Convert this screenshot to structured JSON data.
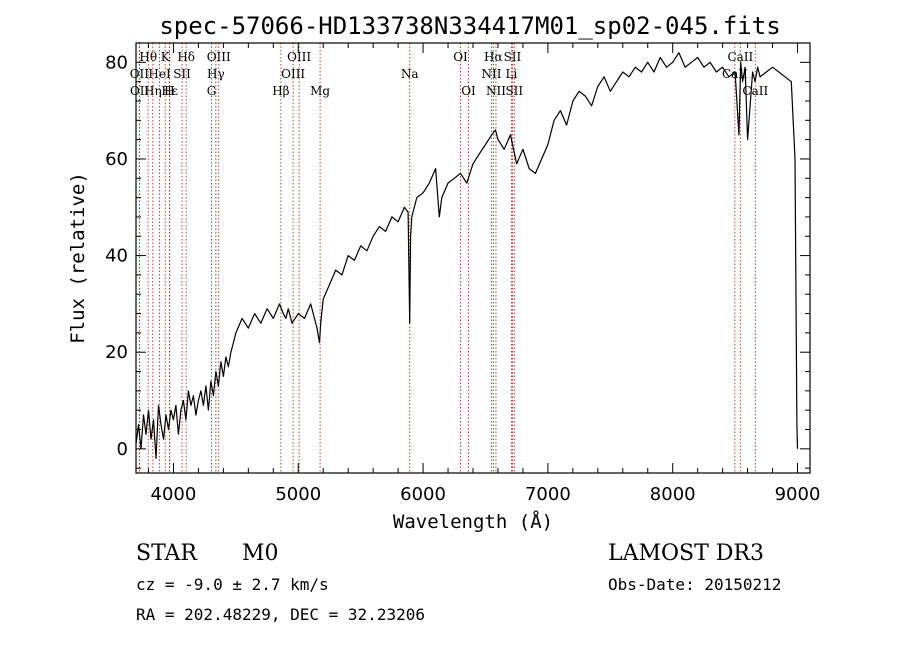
{
  "chart_data": {
    "type": "line",
    "title": "spec-57066-HD133738N334417M01_sp02-045.fits",
    "xlabel": "Wavelength (Å)",
    "ylabel": "Flux (relative)",
    "xlim": [
      3700,
      9100
    ],
    "ylim": [
      -5,
      84
    ],
    "xticks": [
      4000,
      5000,
      6000,
      7000,
      8000,
      9000
    ],
    "yticks": [
      0,
      20,
      40,
      60,
      80
    ],
    "series": [
      {
        "name": "spectrum",
        "x": [
          3700,
          3720,
          3740,
          3760,
          3780,
          3800,
          3820,
          3840,
          3860,
          3880,
          3900,
          3920,
          3940,
          3960,
          3980,
          4000,
          4020,
          4040,
          4060,
          4080,
          4100,
          4120,
          4140,
          4160,
          4180,
          4200,
          4220,
          4240,
          4260,
          4280,
          4300,
          4320,
          4340,
          4360,
          4380,
          4400,
          4420,
          4440,
          4460,
          4480,
          4500,
          4550,
          4600,
          4650,
          4700,
          4750,
          4800,
          4850,
          4880,
          4900,
          4920,
          4950,
          5000,
          5050,
          5100,
          5150,
          5170,
          5180,
          5200,
          5250,
          5300,
          5350,
          5400,
          5450,
          5500,
          5550,
          5600,
          5650,
          5700,
          5750,
          5800,
          5850,
          5880,
          5893,
          5900,
          5910,
          5950,
          6000,
          6050,
          6100,
          6130,
          6150,
          6200,
          6250,
          6300,
          6350,
          6400,
          6450,
          6500,
          6550,
          6580,
          6600,
          6650,
          6700,
          6750,
          6800,
          6850,
          6900,
          6950,
          7000,
          7050,
          7100,
          7150,
          7200,
          7250,
          7300,
          7350,
          7400,
          7450,
          7500,
          7550,
          7600,
          7650,
          7700,
          7750,
          7800,
          7850,
          7900,
          7950,
          8000,
          8050,
          8100,
          8150,
          8200,
          8250,
          8300,
          8350,
          8400,
          8450,
          8500,
          8530,
          8545,
          8560,
          8580,
          8600,
          8640,
          8660,
          8680,
          8700,
          8750,
          8800,
          8850,
          8900,
          8950,
          8980,
          8995,
          9000
        ],
        "values": [
          1,
          5,
          0,
          7,
          3,
          8,
          2,
          6,
          -2,
          9,
          5,
          2,
          7,
          4,
          8,
          6,
          9,
          3,
          8,
          10,
          6,
          12,
          9,
          11,
          7,
          10,
          12,
          9,
          13,
          8,
          14,
          11,
          16,
          13,
          18,
          15,
          19,
          17,
          20,
          22,
          24,
          27,
          25,
          28,
          26,
          29,
          27,
          30,
          28,
          27,
          29,
          26,
          28,
          27,
          30,
          25,
          22,
          26,
          31,
          34,
          37,
          36,
          40,
          39,
          42,
          41,
          44,
          46,
          45,
          48,
          47,
          50,
          49,
          26,
          44,
          48,
          52,
          53,
          55,
          58,
          48,
          52,
          55,
          56,
          57,
          55,
          59,
          61,
          63,
          65,
          66,
          64,
          62,
          65,
          59,
          62,
          58,
          57,
          60,
          63,
          68,
          70,
          67,
          72,
          74,
          73,
          71,
          75,
          77,
          74,
          76,
          78,
          77,
          79,
          78,
          80,
          78,
          81,
          79,
          80,
          82,
          79,
          80,
          81,
          79,
          80,
          78,
          79,
          77,
          78,
          65,
          80,
          76,
          79,
          64,
          78,
          76,
          79,
          77,
          78,
          79,
          78,
          77,
          76,
          60,
          5,
          0
        ]
      }
    ],
    "spectral_lines": [
      {
        "label": "Hθ",
        "wave": 3798,
        "row": 0
      },
      {
        "label": "OII",
        "wave": 3727,
        "row": 1
      },
      {
        "label": "OII",
        "wave": 3729,
        "row": 2
      },
      {
        "label": "Hε",
        "wave": 3970,
        "row": 2
      },
      {
        "label": "HeI",
        "wave": 3889,
        "row": 1
      },
      {
        "label": "Hη",
        "wave": 3835,
        "row": 2
      },
      {
        "label": "K",
        "wave": 3934,
        "row": 0
      },
      {
        "label": "H",
        "wave": 3968,
        "row": 2
      },
      {
        "label": "SII",
        "wave": 4069,
        "row": 1
      },
      {
        "label": "Hδ",
        "wave": 4102,
        "row": 0
      },
      {
        "label": "OIII",
        "wave": 4363,
        "row": 0
      },
      {
        "label": "Hγ",
        "wave": 4340,
        "row": 1
      },
      {
        "label": "G",
        "wave": 4305,
        "row": 2
      },
      {
        "label": "Hβ",
        "wave": 4861,
        "row": 2
      },
      {
        "label": "OIII",
        "wave": 5007,
        "row": 0
      },
      {
        "label": "OIII",
        "wave": 4959,
        "row": 1
      },
      {
        "label": "Mg",
        "wave": 5175,
        "row": 2
      },
      {
        "label": "Na",
        "wave": 5893,
        "row": 1
      },
      {
        "label": "OI",
        "wave": 6300,
        "row": 0
      },
      {
        "label": "OI",
        "wave": 6364,
        "row": 2
      },
      {
        "label": "Hα",
        "wave": 6563,
        "row": 0
      },
      {
        "label": "SII",
        "wave": 6716,
        "row": 0
      },
      {
        "label": "NII",
        "wave": 6548,
        "row": 1
      },
      {
        "label": "Li",
        "wave": 6708,
        "row": 1
      },
      {
        "label": "NII",
        "wave": 6584,
        "row": 2
      },
      {
        "label": "SII",
        "wave": 6731,
        "row": 2
      },
      {
        "label": "CaII",
        "wave": 8542,
        "row": 0
      },
      {
        "label": "CaII",
        "wave": 8498,
        "row": 1
      },
      {
        "label": "CaII",
        "wave": 8662,
        "row": 2
      }
    ]
  },
  "info": {
    "object_class": "STAR",
    "subclass": "M0",
    "survey": "LAMOST DR3",
    "redshift": "cz = -9.0 ± 2.7 km/s",
    "obs_date": "Obs-Date: 20150212",
    "coordinates": "RA = 202.48229, DEC =  32.23206"
  },
  "colors": {
    "line_marker": "#b03020",
    "spectrum": "#000000",
    "axes": "#000000"
  }
}
